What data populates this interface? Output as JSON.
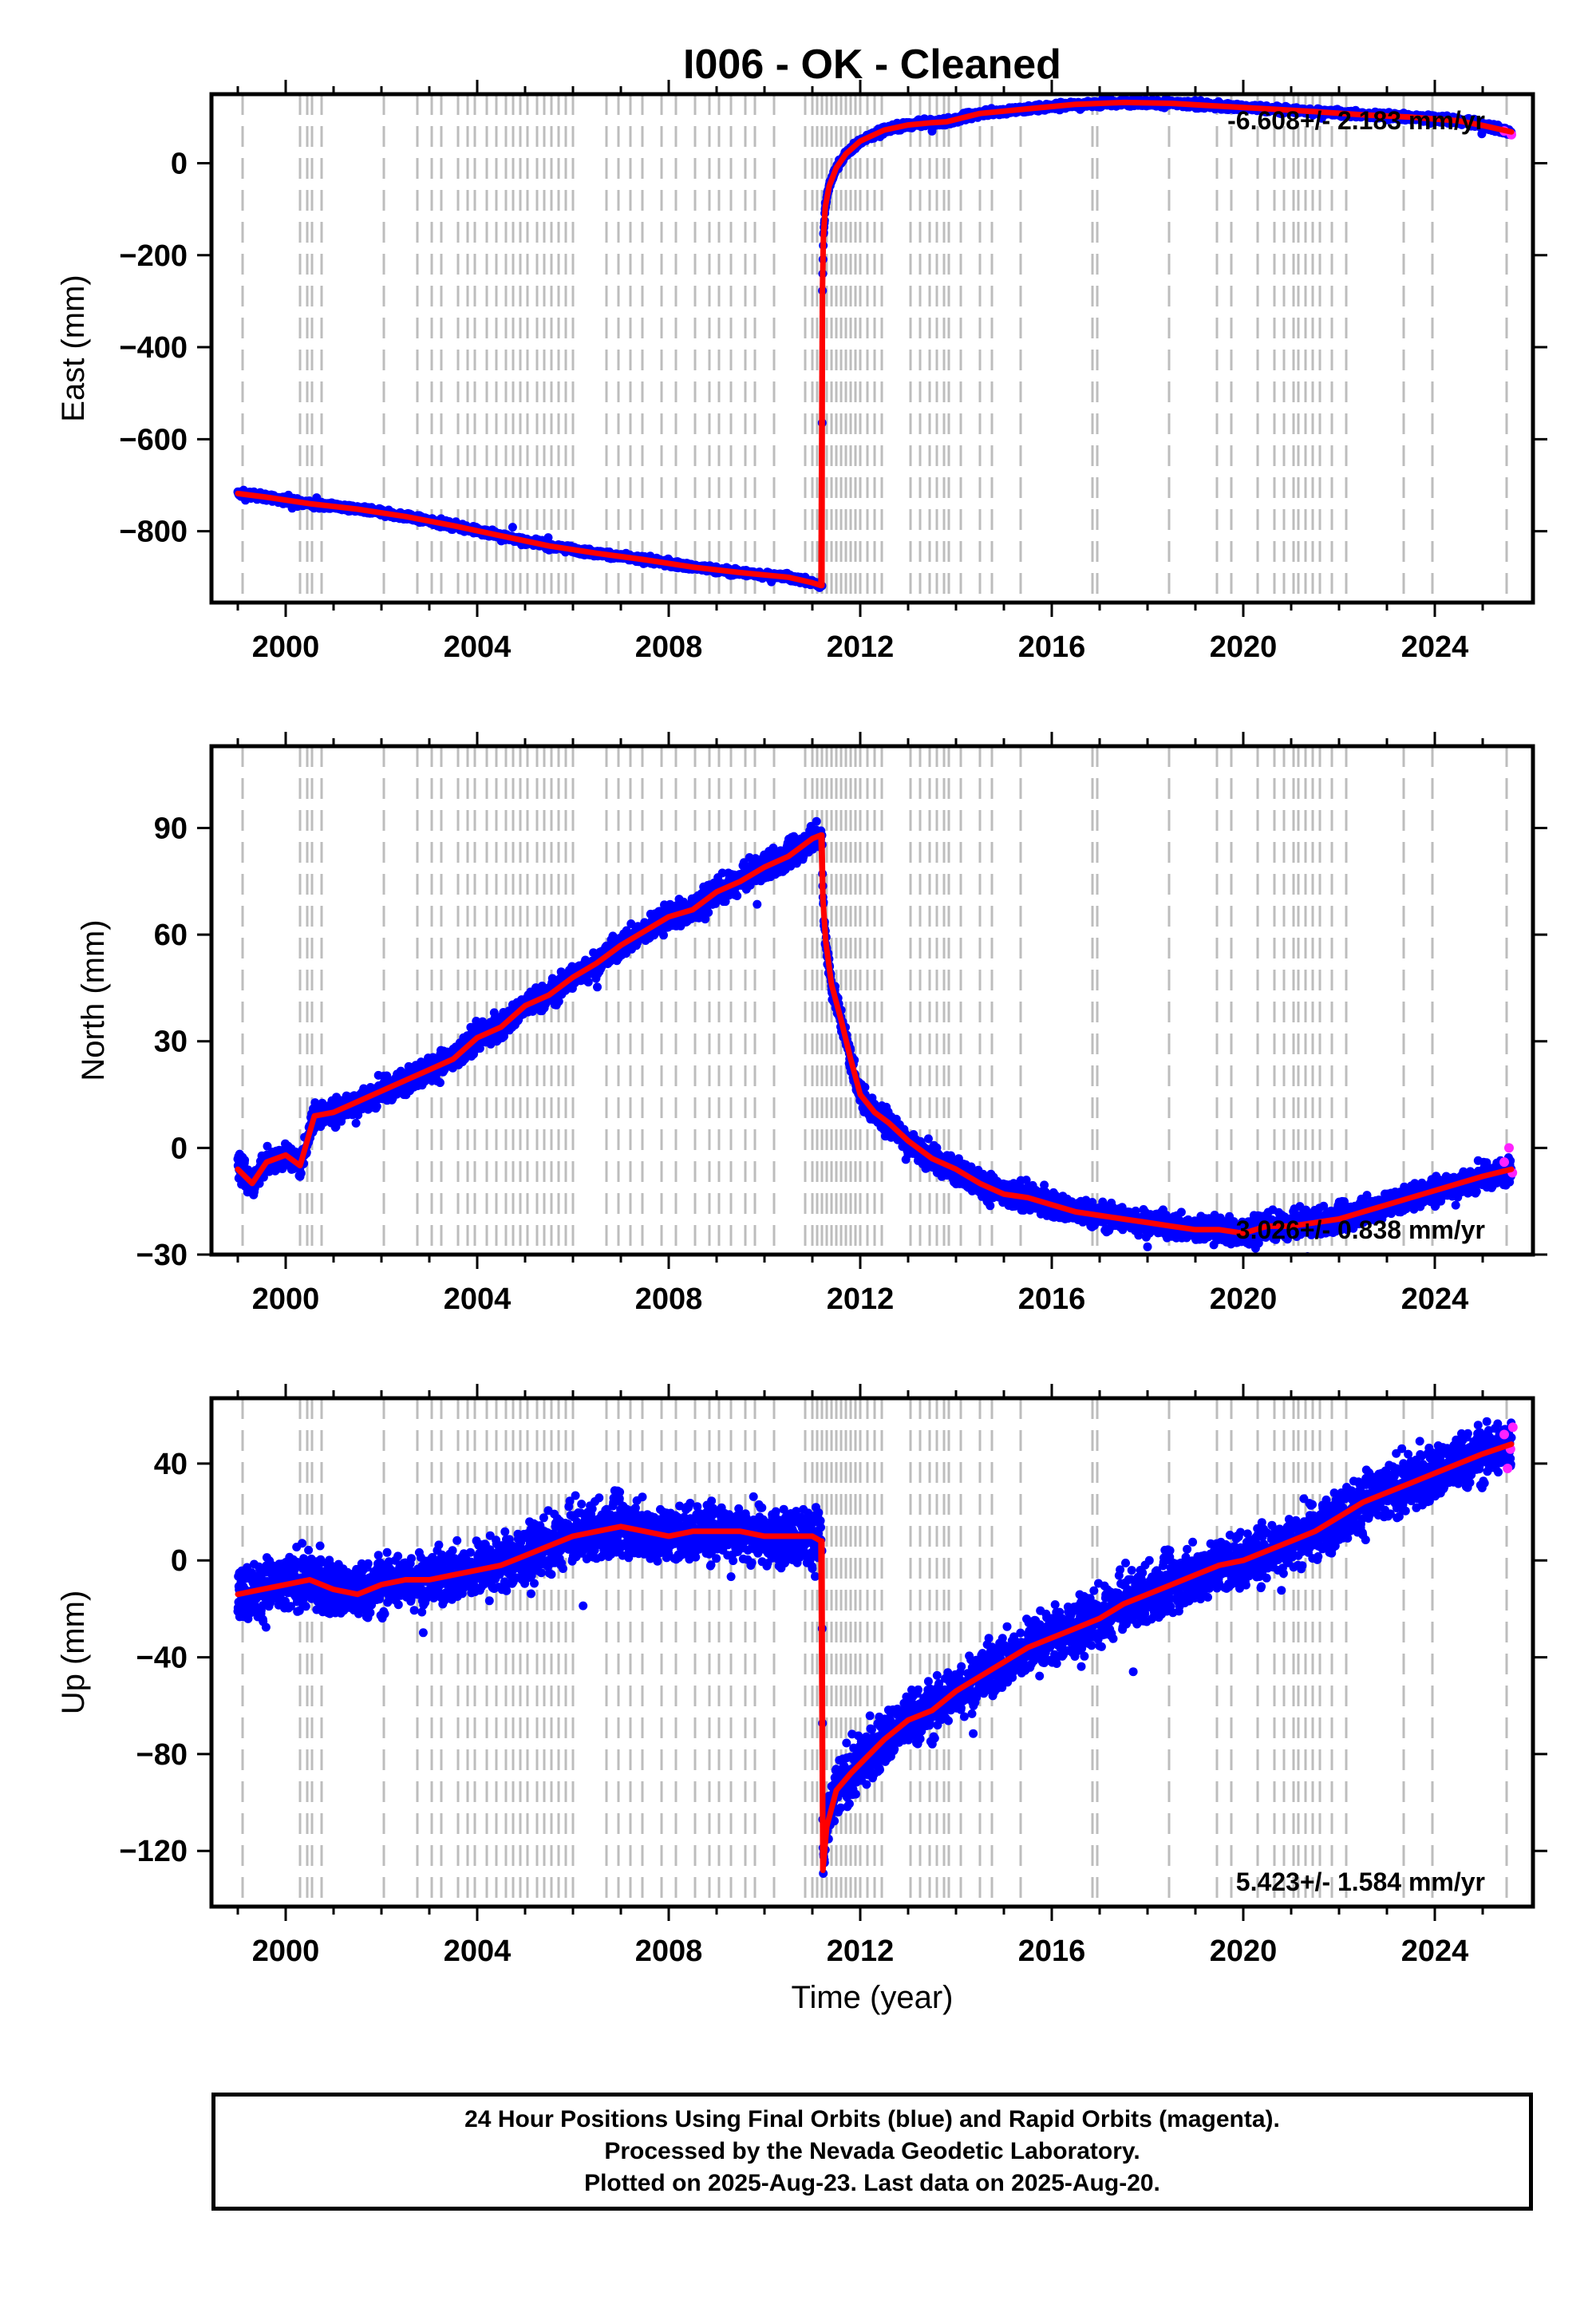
{
  "title": "I006  - OK - Cleaned",
  "footer": {
    "line1": "24 Hour Positions Using Final Orbits (blue) and Rapid Orbits (magenta).",
    "line2": "Processed by the Nevada Geodetic Laboratory.",
    "line3": "Plotted on 2025-Aug-23. Last data on 2025-Aug-20."
  },
  "colors": {
    "final": "#0000ff",
    "rapid": "#ff22ff",
    "model": "#ff0000",
    "step": "#bdbdbd"
  },
  "chart_data": {
    "type": "scatter",
    "xlabel": "Time (year)",
    "xlim": [
      1998.45,
      2026.05
    ],
    "xticks": [
      2000,
      2004,
      2008,
      2012,
      2016,
      2020,
      2024
    ],
    "step_lines": [
      1999.1,
      2000.3,
      2000.45,
      2000.55,
      2000.75,
      2002.05,
      2002.75,
      2003.05,
      2003.25,
      2003.6,
      2003.8,
      2003.95,
      2004.2,
      2004.4,
      2004.6,
      2004.75,
      2004.9,
      2005.05,
      2005.25,
      2005.4,
      2005.55,
      2005.7,
      2005.85,
      2006.0,
      2006.7,
      2006.95,
      2007.2,
      2007.45,
      2007.85,
      2008.15,
      2008.55,
      2008.85,
      2009.05,
      2009.3,
      2009.6,
      2009.8,
      2010.2,
      2010.85,
      2011.0,
      2011.1,
      2011.2,
      2011.3,
      2011.4,
      2011.5,
      2011.6,
      2011.7,
      2011.8,
      2011.9,
      2012.0,
      2012.15,
      2012.3,
      2012.45,
      2013.05,
      2013.25,
      2013.45,
      2013.6,
      2013.75,
      2013.85,
      2014.1,
      2014.5,
      2014.75,
      2015.35,
      2016.85,
      2016.95,
      2018.45,
      2019.45,
      2019.75,
      2020.3,
      2020.65,
      2020.85,
      2021.05,
      2021.15,
      2021.3,
      2021.45,
      2021.6,
      2021.85,
      2022.15,
      2023.35,
      2023.95,
      2025.5
    ],
    "panels": [
      {
        "ylabel": "East (mm)",
        "ylim": [
          -955,
          150
        ],
        "yticks": [
          0,
          -200,
          -400,
          -600,
          -800
        ],
        "rate": "-6.608+/- 2.183 mm/yr",
        "rate_position": "top-right",
        "noise": 5,
        "series": [
          {
            "x": [
              1999.0,
              1999.6,
              2000.5,
              2001.5,
              2002.5,
              2003.5,
              2004.5,
              2005.5,
              2006.5,
              2007.5,
              2008.5,
              2009.5,
              2010.5,
              2011.0,
              2011.18
            ],
            "y": [
              -718,
              -726,
              -740,
              -752,
              -768,
              -788,
              -810,
              -832,
              -848,
              -862,
              -878,
              -890,
              -900,
              -912,
              -918
            ]
          },
          {
            "x": [
              2011.2,
              2011.21,
              2011.23,
              2011.27,
              2011.35,
              2011.5,
              2011.7,
              2012.0,
              2012.5,
              2013.0,
              2013.5,
              2013.8,
              2014.5,
              2015.5,
              2016.5,
              2017.5,
              2018.5,
              2019.5,
              2020.5,
              2021.5,
              2022.5,
              2023.5,
              2024.5,
              2025.0,
              2025.6
            ],
            "y": [
              -918,
              -280,
              -160,
              -95,
              -50,
              -10,
              20,
              48,
              72,
              83,
              88,
              90,
              108,
              118,
              128,
              132,
              130,
              124,
              118,
              112,
              105,
              100,
              92,
              82,
              68
            ]
          }
        ],
        "rapid_x": [
          2025.45,
          2025.6
        ],
        "rapid_y": [
          70,
          62
        ]
      },
      {
        "ylabel": "North (mm)",
        "ylim": [
          -30,
          113
        ],
        "yticks": [
          90,
          60,
          30,
          0,
          -30
        ],
        "rate": "3.026+/- 0.838 mm/yr",
        "rate_position": "bottom-right",
        "noise": 2.5,
        "series": [
          {
            "x": [
              1999.0,
              1999.3,
              1999.6,
              2000.0,
              2000.3,
              2000.6,
              2001.0,
              2001.5,
              2002.0,
              2002.5,
              2003.0,
              2003.5,
              2004.0,
              2004.5,
              2005.0,
              2005.5,
              2006.0,
              2006.5,
              2007.0,
              2007.5,
              2008.0,
              2008.5,
              2009.0,
              2009.5,
              2010.0,
              2010.5,
              2011.0,
              2011.18
            ],
            "y": [
              -6,
              -10,
              -4,
              -2,
              -5,
              9,
              10,
              13,
              16,
              19,
              22,
              25,
              31,
              34,
              40,
              43,
              48,
              52,
              57,
              61,
              65,
              67,
              72,
              75,
              79,
              82,
              87,
              88
            ]
          },
          {
            "x": [
              2011.2,
              2011.22,
              2011.28,
              2011.4,
              2011.6,
              2011.8,
              2012.0,
              2012.3,
              2012.6,
              2013.0,
              2013.5,
              2014.0,
              2014.5,
              2015.0,
              2015.5,
              2016.0,
              2016.5,
              2017.0,
              2017.5,
              2018.0,
              2018.5,
              2019.0,
              2019.5,
              2020.0,
              2020.5,
              2021.0,
              2021.5,
              2022.0,
              2022.5,
              2023.0,
              2023.5,
              2024.0,
              2024.5,
              2025.0,
              2025.6
            ],
            "y": [
              88,
              70,
              58,
              46,
              36,
              25,
              15,
              10,
              7,
              2,
              -3,
              -6,
              -10,
              -13,
              -14,
              -16,
              -18,
              -19,
              -20,
              -21,
              -22,
              -23,
              -23,
              -24,
              -22,
              -22,
              -21,
              -20,
              -18,
              -16,
              -14,
              -12,
              -10,
              -8,
              -6
            ]
          }
        ],
        "rapid_x": [
          2025.45,
          2025.55,
          2025.62
        ],
        "rapid_y": [
          -4,
          0,
          -7
        ]
      },
      {
        "ylabel": "Up (mm)",
        "ylim": [
          -143,
          67
        ],
        "yticks": [
          40,
          0,
          -40,
          -80,
          -120
        ],
        "rate": "5.423+/- 1.584 mm/yr",
        "rate_position": "bottom-right",
        "noise": 8,
        "series": [
          {
            "x": [
              1999.0,
              1999.5,
              2000.0,
              2000.5,
              2001.0,
              2001.5,
              2002.0,
              2002.5,
              2003.0,
              2003.5,
              2004.0,
              2004.5,
              2005.0,
              2005.5,
              2006.0,
              2006.5,
              2007.0,
              2007.5,
              2008.0,
              2008.5,
              2009.0,
              2009.5,
              2010.0,
              2010.5,
              2011.0,
              2011.18
            ],
            "y": [
              -14,
              -12,
              -10,
              -8,
              -12,
              -14,
              -10,
              -8,
              -8,
              -6,
              -4,
              -2,
              2,
              6,
              10,
              12,
              14,
              12,
              10,
              12,
              12,
              12,
              10,
              10,
              10,
              8
            ]
          },
          {
            "x": [
              2011.2,
              2011.22,
              2011.3,
              2011.5,
              2011.8,
              2012.0,
              2012.5,
              2013.0,
              2013.5,
              2014.0,
              2014.5,
              2015.0,
              2015.5,
              2016.0,
              2016.5,
              2017.0,
              2017.5,
              2018.0,
              2018.5,
              2019.0,
              2019.5,
              2020.0,
              2020.5,
              2021.0,
              2021.5,
              2022.0,
              2022.5,
              2023.0,
              2023.5,
              2024.0,
              2024.5,
              2025.0,
              2025.6
            ],
            "y": [
              8,
              -128,
              -110,
              -95,
              -88,
              -84,
              -74,
              -66,
              -62,
              -54,
              -48,
              -42,
              -36,
              -32,
              -28,
              -24,
              -18,
              -14,
              -10,
              -6,
              -2,
              0,
              4,
              8,
              12,
              18,
              24,
              28,
              32,
              36,
              40,
              44,
              48
            ]
          }
        ],
        "rapid_x": [
          2025.45,
          2025.52,
          2025.58,
          2025.63
        ],
        "rapid_y": [
          52,
          38,
          46,
          55
        ]
      }
    ]
  }
}
